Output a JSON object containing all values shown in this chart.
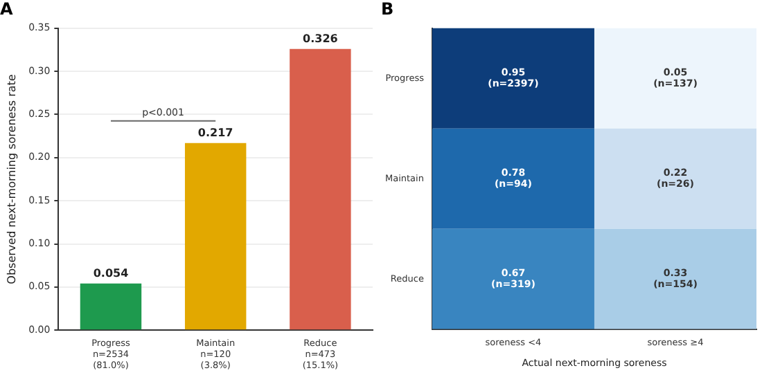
{
  "chart_data": [
    {
      "type": "bar",
      "title": "A",
      "ylabel": "Observed next-morning soreness rate",
      "categories": [
        "Progress\nn=2534\n(81.0%)",
        "Maintain\nn=120\n(3.8%)",
        "Reduce\nn=473\n(15.1%)"
      ],
      "values": [
        0.054,
        0.217,
        0.326
      ],
      "colors": [
        "#1e9a4e",
        "#e2a800",
        "#d95f4c"
      ],
      "ylim": [
        0,
        0.35
      ],
      "yticks": [
        {
          "value": 0,
          "label": "0.00"
        },
        0.05,
        {
          "value": 0.1,
          "label": "0.10"
        },
        0.15,
        {
          "value": 0.2,
          "label": "0.20"
        },
        0.25,
        {
          "value": 0.3,
          "label": "0.30"
        },
        0.35
      ],
      "grid": "y",
      "data_labels": true,
      "legend": false,
      "annotations": [
        "p<0.001"
      ]
    },
    {
      "type": "heatmap",
      "title": "B",
      "xlabel": "Actual next-morning soreness",
      "categories": [
        "soreness <4",
        "soreness ≥4"
      ],
      "y_categories": [
        "Progress",
        "Maintain",
        "Reduce"
      ],
      "cells": [
        [
          0.95,
          0.05
        ],
        [
          0.78,
          0.22
        ],
        [
          0.67,
          0.33
        ]
      ],
      "annotations": [
        "(n=2397)",
        "(n=137)",
        "(n=94)",
        "(n=26)",
        "(n=319)",
        "(n=154)"
      ],
      "data_labels": true,
      "grid": false,
      "legend": false
    }
  ]
}
